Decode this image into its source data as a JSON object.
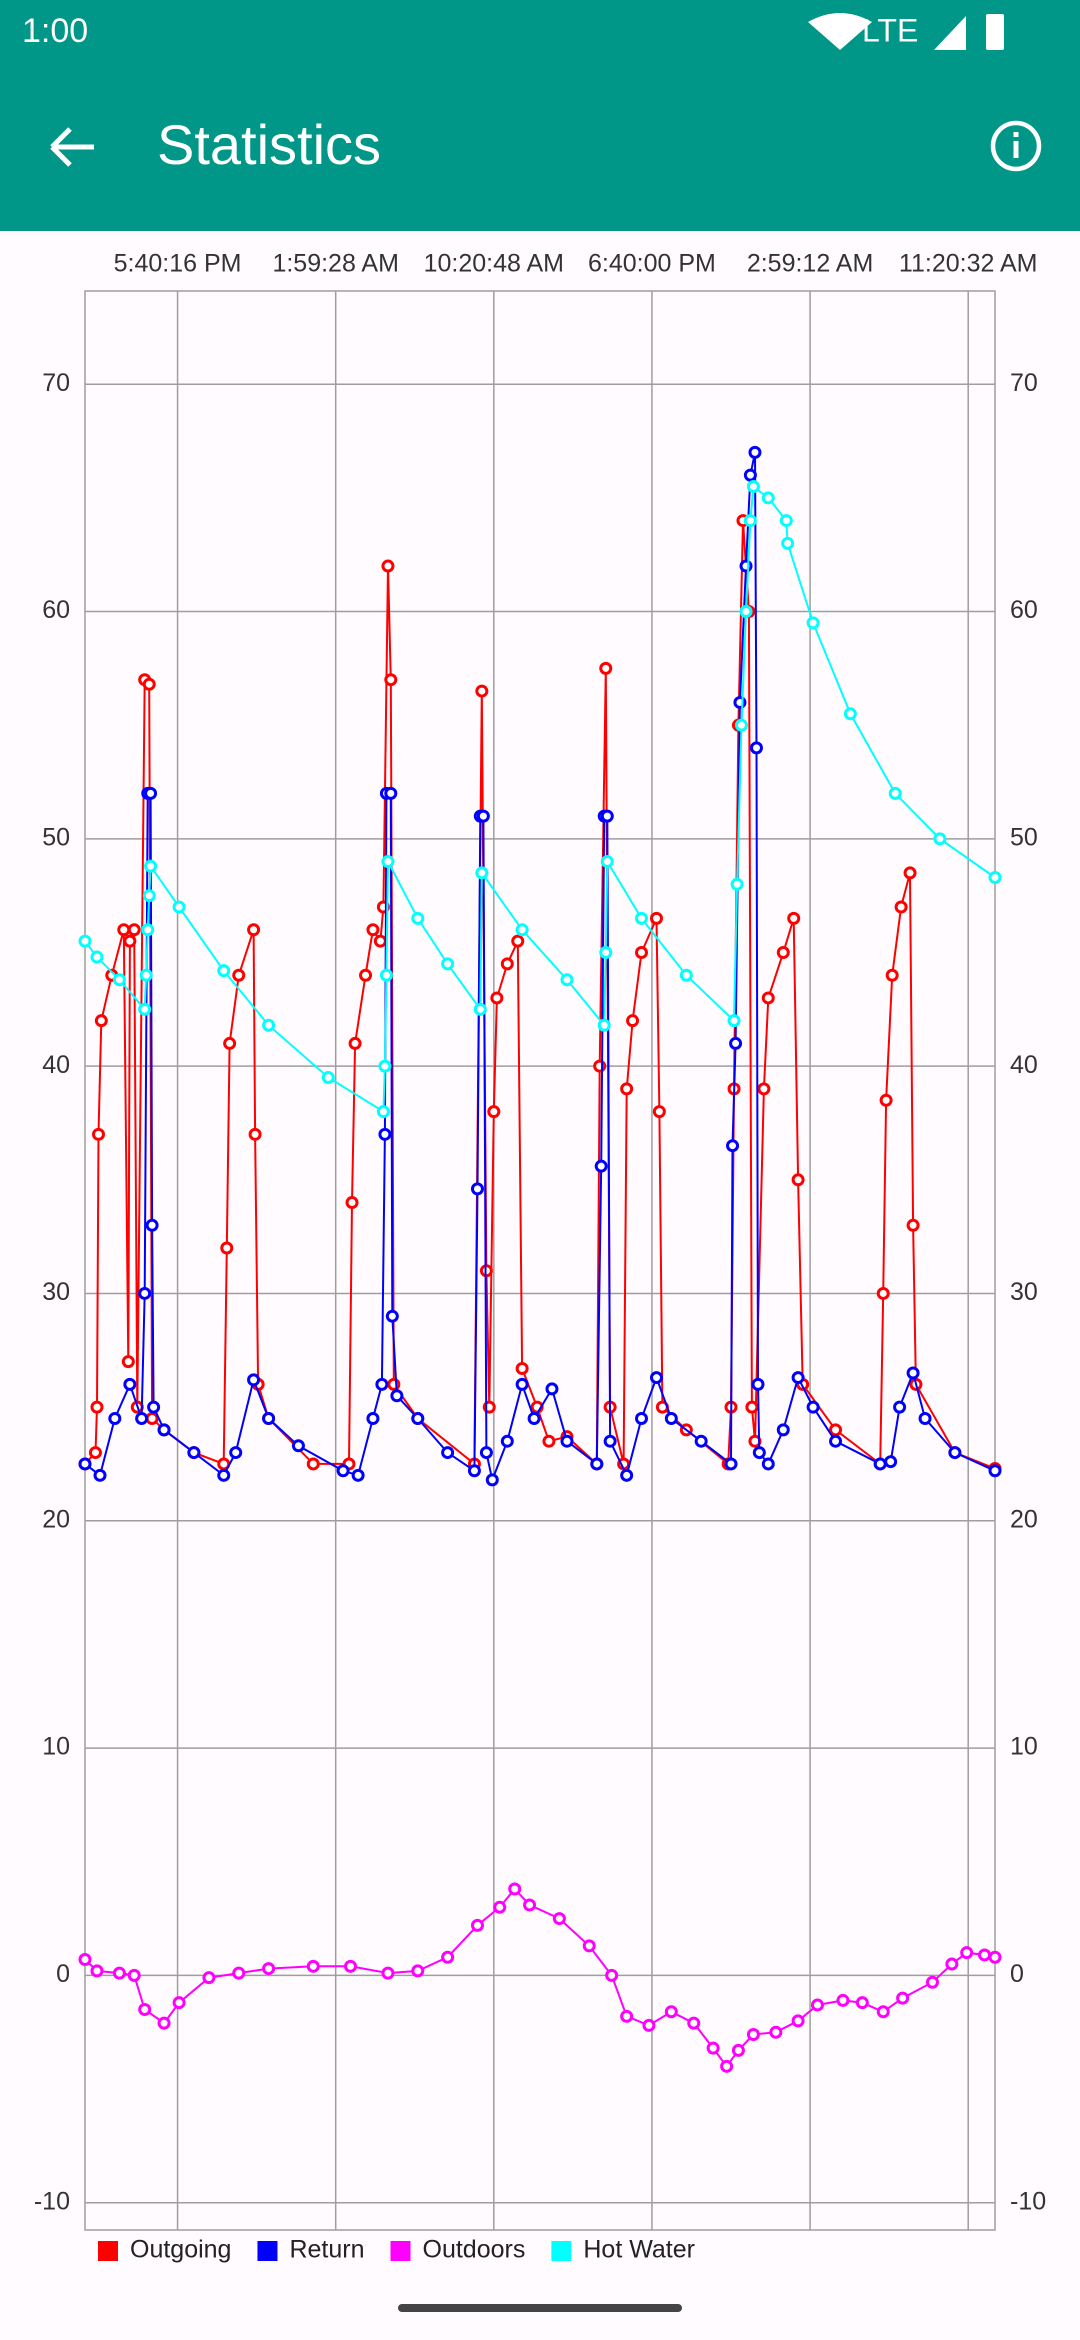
{
  "status_bar": {
    "time": "1:00",
    "network": "LTE"
  },
  "app_bar": {
    "title": "Statistics"
  },
  "chart_data": {
    "type": "line",
    "xlim": [
      12.8,
      60.68
    ],
    "xticks": [
      {
        "value": 17.67,
        "label": "5:40:16 PM"
      },
      {
        "value": 25.99,
        "label": "1:59:28 AM"
      },
      {
        "value": 34.31,
        "label": "10:20:48 AM"
      },
      {
        "value": 42.63,
        "label": "6:40:00 PM"
      },
      {
        "value": 50.95,
        "label": "2:59:12 AM"
      },
      {
        "value": 59.27,
        "label": "11:20:32 AM"
      }
    ],
    "ylim": [
      -11.2,
      74.1
    ],
    "yticks": [
      -10,
      0,
      10,
      20,
      30,
      40,
      50,
      60,
      70
    ],
    "grid": true,
    "legend": "bottom-left",
    "series": [
      {
        "name": "Outgoing",
        "color": "#ff0000",
        "x": [
          12.8,
          13.35,
          13.43,
          13.51,
          13.66,
          14.21,
          14.84,
          15.08,
          15.16,
          15.39,
          15.55,
          15.94,
          16.18,
          16.33,
          16.96,
          18.53,
          20.1,
          20.26,
          20.41,
          20.89,
          21.67,
          21.75,
          21.91,
          22.46,
          24.81,
          26.69,
          26.85,
          27.01,
          27.56,
          27.95,
          28.34,
          28.5,
          28.74,
          28.89,
          29.05,
          30.31,
          33.29,
          33.68,
          33.92,
          34.07,
          34.31,
          34.47,
          35.02,
          35.57,
          35.8,
          36.59,
          37.21,
          38.16,
          39.73,
          39.88,
          40.2,
          40.43,
          41.14,
          41.3,
          41.61,
          42.08,
          42.87,
          43.02,
          43.18,
          44.44,
          46.64,
          46.79,
          46.95,
          47.18,
          47.42,
          47.73,
          47.89,
          48.05,
          48.52,
          48.75,
          49.54,
          50.09,
          50.32,
          50.56,
          52.29,
          54.64,
          54.8,
          54.95,
          55.27,
          55.74,
          56.21,
          56.37,
          56.52,
          58.57,
          60.68
        ],
        "values": [
          22.5,
          23,
          25,
          37,
          42,
          44,
          46,
          27,
          45.5,
          46,
          25,
          57,
          56.8,
          24.5,
          24,
          23,
          22.5,
          32,
          41,
          44,
          46,
          37,
          26,
          24.5,
          22.5,
          22.5,
          34,
          41,
          44,
          46,
          45.5,
          47,
          62,
          57,
          26,
          24.5,
          22.5,
          56.5,
          31,
          25,
          38,
          43,
          44.5,
          45.5,
          26.7,
          25,
          23.5,
          23.7,
          22.5,
          40,
          57.5,
          25,
          22.5,
          39,
          42,
          45,
          46.5,
          38,
          25,
          24,
          22.5,
          25,
          39,
          55,
          64,
          60,
          25,
          23.5,
          39,
          43,
          45,
          46.5,
          35,
          26,
          24,
          22.5,
          30,
          38.5,
          44,
          47,
          48.5,
          33,
          26,
          23,
          22.3
        ]
      },
      {
        "name": "Return",
        "color": "#0000ff",
        "x": [
          12.8,
          13.59,
          14.37,
          15.16,
          15.78,
          15.94,
          16.1,
          16.25,
          16.33,
          16.41,
          16.96,
          18.53,
          20.1,
          20.73,
          21.67,
          22.46,
          24.03,
          26.38,
          27.17,
          27.95,
          28.42,
          28.58,
          28.66,
          28.89,
          28.97,
          29.21,
          30.31,
          31.88,
          33.29,
          33.45,
          33.6,
          33.76,
          33.92,
          34.23,
          35.02,
          35.8,
          36.43,
          37.37,
          38.16,
          39.73,
          39.96,
          40.12,
          40.28,
          40.43,
          41.3,
          42.08,
          42.87,
          43.65,
          45.22,
          46.79,
          46.87,
          47.03,
          47.26,
          47.58,
          47.81,
          48.05,
          48.13,
          48.21,
          48.28,
          48.75,
          49.54,
          50.32,
          51.11,
          52.29,
          54.64,
          55.19,
          55.66,
          56.37,
          57.0,
          58.57,
          60.68
        ],
        "values": [
          22.5,
          22,
          24.5,
          26,
          24.5,
          30,
          52,
          52,
          33,
          25,
          24,
          23,
          22,
          23,
          26.2,
          24.5,
          23.3,
          22.2,
          22,
          24.5,
          26,
          37,
          52,
          52,
          29,
          25.5,
          24.5,
          23,
          22.2,
          34.6,
          51,
          51,
          23,
          21.8,
          23.5,
          26,
          24.5,
          25.8,
          23.5,
          22.5,
          35.6,
          51,
          51,
          23.5,
          22,
          24.5,
          26.3,
          24.5,
          23.5,
          22.5,
          36.5,
          41,
          56,
          62,
          66,
          67,
          54,
          26,
          23,
          22.5,
          24,
          26.3,
          25,
          23.5,
          22.5,
          22.6,
          25,
          26.5,
          24.5,
          23,
          22.2
        ]
      },
      {
        "name": "Outdoors",
        "color": "#ff00ff",
        "x": [
          12.8,
          13.43,
          14.61,
          15.39,
          15.94,
          16.96,
          17.75,
          19.32,
          20.89,
          22.46,
          24.81,
          26.77,
          28.74,
          30.31,
          31.88,
          33.45,
          34.62,
          35.41,
          36.19,
          37.76,
          39.33,
          40.51,
          41.3,
          42.47,
          43.65,
          44.83,
          45.85,
          46.56,
          47.18,
          47.97,
          49.15,
          50.32,
          51.34,
          52.68,
          53.7,
          54.8,
          55.82,
          57.39,
          58.41,
          59.19,
          60.13,
          60.68
        ],
        "values": [
          0.7,
          0.2,
          0.1,
          0,
          -1.5,
          -2.1,
          -1.2,
          -0.1,
          0.1,
          0.3,
          0.4,
          0.4,
          0.1,
          0.2,
          0.8,
          2.2,
          3.0,
          3.8,
          3.1,
          2.5,
          1.3,
          0,
          -1.8,
          -2.2,
          -1.6,
          -2.1,
          -3.2,
          -4,
          -3.3,
          -2.6,
          -2.5,
          -2.0,
          -1.3,
          -1.1,
          -1.2,
          -1.6,
          -1.0,
          -0.3,
          0.5,
          1.0,
          0.9,
          0.8
        ]
      },
      {
        "name": "Hot Water",
        "color": "#00ffff",
        "x": [
          12.8,
          13.43,
          14.61,
          15.94,
          16.02,
          16.1,
          16.18,
          16.25,
          17.75,
          20.1,
          22.46,
          25.6,
          28.5,
          28.58,
          28.66,
          28.74,
          30.31,
          31.88,
          33.6,
          33.68,
          35.8,
          38.16,
          40.12,
          40.2,
          40.28,
          42.08,
          44.44,
          46.95,
          47.11,
          47.34,
          47.58,
          47.81,
          47.97,
          48.75,
          49.7,
          49.77,
          51.11,
          53.07,
          55.43,
          57.78,
          60.68
        ],
        "values": [
          45.5,
          44.8,
          43.8,
          42.5,
          44,
          46,
          47.5,
          48.8,
          47,
          44.2,
          41.8,
          39.5,
          38,
          40,
          44,
          49,
          46.5,
          44.5,
          42.5,
          48.5,
          46,
          43.8,
          41.8,
          45,
          49,
          46.5,
          44,
          42,
          48,
          55,
          60,
          64,
          65.5,
          65,
          64,
          63,
          59.5,
          55.5,
          52,
          50,
          48.3
        ]
      }
    ]
  }
}
